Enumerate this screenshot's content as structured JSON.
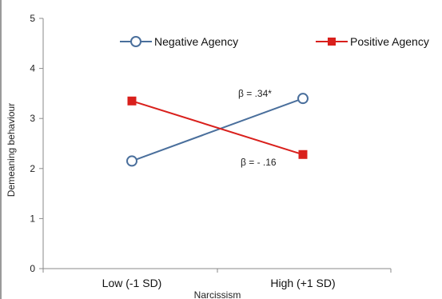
{
  "chart_data": {
    "type": "line",
    "categories": [
      "Low (-1 SD)",
      "High (+1 SD)"
    ],
    "xlabel": "Narcissism",
    "ylabel": "Demeaning behaviour",
    "ylim": [
      0,
      5
    ],
    "yticks": [
      0,
      1,
      2,
      3,
      4,
      5
    ],
    "grid": false,
    "legend_position": "top",
    "series": [
      {
        "name": "Negative Agency",
        "values": [
          2.15,
          3.4
        ],
        "color": "#4a6f9c",
        "marker": "open-circle"
      },
      {
        "name": "Positive Agency",
        "values": [
          3.35,
          2.28
        ],
        "color": "#d9201c",
        "marker": "filled-square"
      }
    ],
    "annotations": [
      {
        "text": "β = .34*",
        "series": "Negative Agency"
      },
      {
        "text": "β = - .16",
        "series": "Positive Agency"
      }
    ]
  }
}
